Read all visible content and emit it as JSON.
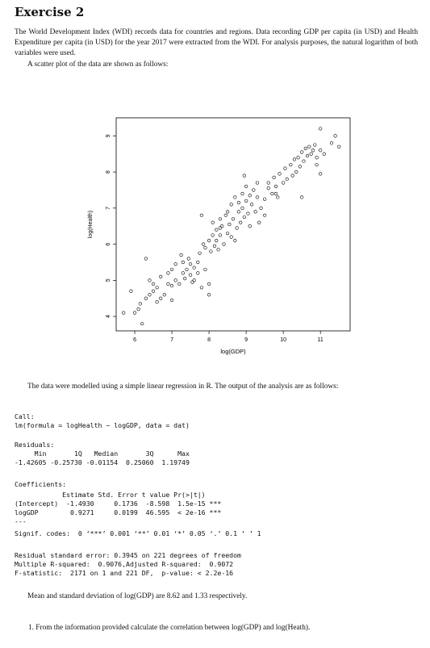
{
  "exercise_title": "Exercise 2",
  "intro_paragraph": "The World Development Index (WDI) records data for countries and regions. Data recording GDP per capita (in USD) and Health Expenditure per capita (in USD) for the year 2017 were extracted from the WDI. For analysis purposes, the natural logarithm of both variables were used.",
  "scatter_intro": "A scatter plot of the data are shown as follows:",
  "model_text": "The data were modelled using a simple linear regression in R. The output of the analysis are as follows:",
  "r_output": {
    "call_header": "Call:",
    "call_line": "lm(formula = logHealth ~ logGDP, data = dat)",
    "residuals_header": "Residuals:",
    "residuals_labels": "     Min       1Q   Median       3Q      Max",
    "residuals_values": "-1.42605 -0.25730 -0.01154  0.25060  1.19749",
    "coef_header": "Coefficients:",
    "coef_cols": "            Estimate Std. Error t value Pr(>|t|)",
    "coef_row1": "(Intercept)  -1.4930     0.1736  -8.598  1.5e-15 ***",
    "coef_row2": "logGDP        0.9271     0.0199  46.595  < 2e-16 ***",
    "coef_sep": "---",
    "signif": "Signif. codes:  0 ‘***’ 0.001 ‘**’ 0.01 ‘*’ 0.05 ‘.’ 0.1 ‘ ’ 1",
    "rse": "Residual standard error: 0.3945 on 221 degrees of freedom",
    "rsq": "Multiple R-squared:  0.9076,Adjusted R-squared:  0.9072",
    "fstat": "F-statistic:  2171 on 1 and 221 DF,  p-value: < 2.2e-16"
  },
  "mean_sd_text": "Mean and standard deviation of log(GDP) are 8.62 and 1.33 respectively.",
  "question_1": "1.  From the information provided calculate the correlation between log(GDP) and log(Heath).",
  "chart_data": {
    "type": "scatter",
    "xlabel": "log(GDP)",
    "ylabel": "log(Health)",
    "xticks": [
      6,
      7,
      8,
      9,
      10,
      11
    ],
    "yticks": [
      4,
      5,
      6,
      7,
      8,
      9
    ],
    "xlim": [
      5.5,
      11.8
    ],
    "ylim": [
      3.6,
      9.5
    ],
    "points": [
      [
        5.7,
        4.1
      ],
      [
        5.9,
        4.7
      ],
      [
        6.0,
        4.1
      ],
      [
        6.1,
        4.2
      ],
      [
        6.15,
        4.35
      ],
      [
        6.2,
        3.8
      ],
      [
        6.3,
        4.5
      ],
      [
        6.3,
        5.6
      ],
      [
        6.4,
        5.0
      ],
      [
        6.4,
        4.6
      ],
      [
        6.5,
        4.9
      ],
      [
        6.5,
        4.7
      ],
      [
        6.6,
        4.8
      ],
      [
        6.6,
        4.4
      ],
      [
        6.7,
        4.5
      ],
      [
        6.7,
        5.1
      ],
      [
        6.8,
        4.6
      ],
      [
        6.9,
        4.9
      ],
      [
        6.9,
        5.2
      ],
      [
        7.0,
        4.85
      ],
      [
        7.0,
        5.3
      ],
      [
        7.1,
        5.45
      ],
      [
        7.1,
        5.0
      ],
      [
        7.2,
        4.9
      ],
      [
        7.25,
        5.7
      ],
      [
        7.3,
        5.2
      ],
      [
        7.3,
        5.5
      ],
      [
        7.35,
        5.05
      ],
      [
        7.4,
        5.3
      ],
      [
        7.45,
        5.6
      ],
      [
        7.5,
        5.15
      ],
      [
        7.5,
        5.45
      ],
      [
        7.55,
        4.95
      ],
      [
        7.6,
        5.35
      ],
      [
        7.7,
        5.2
      ],
      [
        7.7,
        5.5
      ],
      [
        7.75,
        5.75
      ],
      [
        7.8,
        4.8
      ],
      [
        7.85,
        6.0
      ],
      [
        7.9,
        5.9
      ],
      [
        7.9,
        5.3
      ],
      [
        8.0,
        6.1
      ],
      [
        8.0,
        4.9
      ],
      [
        8.05,
        5.8
      ],
      [
        8.1,
        6.25
      ],
      [
        8.1,
        6.6
      ],
      [
        8.15,
        5.95
      ],
      [
        8.2,
        6.4
      ],
      [
        8.2,
        6.1
      ],
      [
        8.25,
        5.85
      ],
      [
        8.3,
        6.7
      ],
      [
        8.3,
        6.25
      ],
      [
        8.35,
        6.5
      ],
      [
        8.4,
        6.0
      ],
      [
        8.45,
        6.8
      ],
      [
        8.5,
        6.3
      ],
      [
        8.5,
        6.9
      ],
      [
        8.55,
        6.55
      ],
      [
        8.6,
        7.1
      ],
      [
        8.6,
        6.2
      ],
      [
        8.65,
        6.7
      ],
      [
        8.7,
        7.3
      ],
      [
        8.75,
        6.45
      ],
      [
        8.8,
        6.9
      ],
      [
        8.8,
        7.15
      ],
      [
        8.85,
        6.6
      ],
      [
        8.9,
        7.4
      ],
      [
        8.9,
        7.0
      ],
      [
        8.95,
        6.75
      ],
      [
        9.0,
        7.2
      ],
      [
        9.05,
        6.85
      ],
      [
        9.1,
        7.35
      ],
      [
        9.1,
        6.5
      ],
      [
        9.15,
        7.1
      ],
      [
        9.2,
        7.5
      ],
      [
        9.25,
        6.9
      ],
      [
        9.3,
        7.3
      ],
      [
        9.35,
        6.6
      ],
      [
        9.4,
        7.0
      ],
      [
        9.5,
        7.25
      ],
      [
        9.6,
        7.55
      ],
      [
        9.6,
        7.7
      ],
      [
        9.7,
        7.4
      ],
      [
        9.75,
        7.85
      ],
      [
        9.8,
        7.6
      ],
      [
        9.85,
        7.3
      ],
      [
        9.9,
        7.95
      ],
      [
        10.0,
        7.7
      ],
      [
        10.05,
        8.1
      ],
      [
        10.1,
        7.8
      ],
      [
        10.2,
        8.2
      ],
      [
        10.25,
        7.9
      ],
      [
        10.3,
        8.35
      ],
      [
        10.35,
        8.0
      ],
      [
        10.4,
        8.4
      ],
      [
        10.45,
        8.15
      ],
      [
        10.5,
        8.55
      ],
      [
        10.55,
        8.3
      ],
      [
        10.6,
        8.65
      ],
      [
        10.65,
        8.45
      ],
      [
        10.7,
        8.7
      ],
      [
        10.75,
        8.5
      ],
      [
        10.8,
        8.6
      ],
      [
        10.85,
        8.75
      ],
      [
        10.9,
        8.4
      ],
      [
        11.0,
        8.6
      ],
      [
        11.0,
        9.2
      ],
      [
        11.1,
        8.5
      ],
      [
        11.3,
        8.8
      ],
      [
        11.4,
        9.0
      ],
      [
        11.5,
        8.7
      ],
      [
        8.95,
        7.9
      ],
      [
        9.5,
        6.8
      ],
      [
        10.5,
        7.3
      ],
      [
        11.0,
        7.95
      ],
      [
        7.8,
        6.8
      ],
      [
        9.8,
        7.4
      ],
      [
        10.9,
        8.2
      ],
      [
        8.0,
        4.6
      ],
      [
        7.0,
        4.45
      ],
      [
        8.7,
        6.1
      ],
      [
        9.0,
        7.6
      ],
      [
        7.6,
        5.0
      ],
      [
        8.3,
        6.45
      ],
      [
        9.3,
        7.7
      ]
    ]
  }
}
